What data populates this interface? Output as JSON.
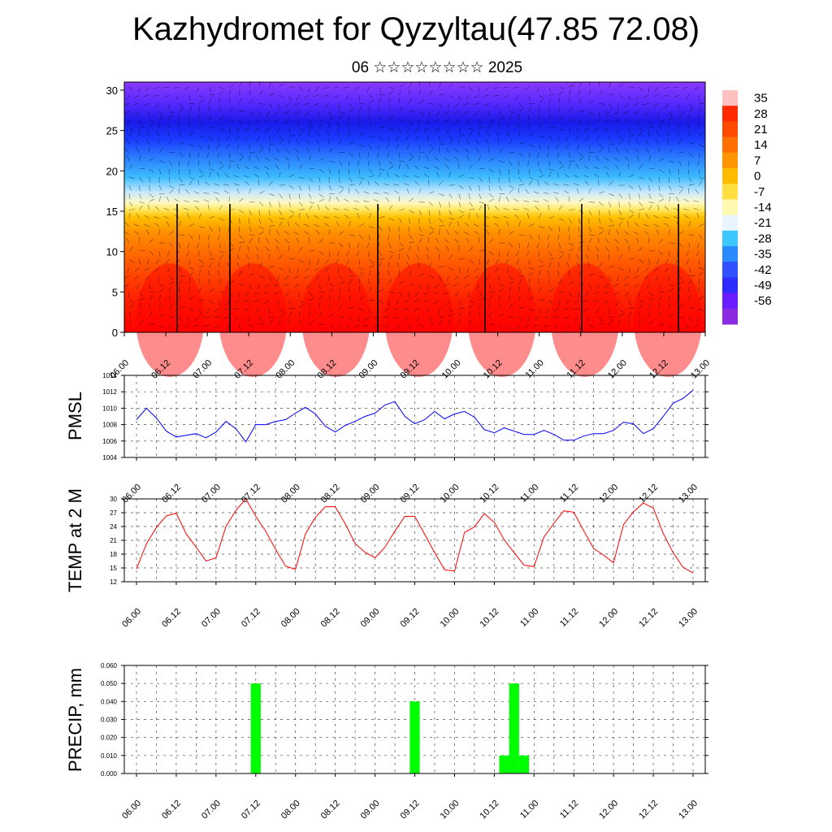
{
  "title": "Kazhydromet for Qyzyltau(47.85 72.08)",
  "subtitle": "06 ☆☆☆☆☆☆☆☆ 2025",
  "time_labels": [
    "06.00",
    "06.12",
    "07.00",
    "07.12",
    "08.00",
    "08.12",
    "09.00",
    "09.12",
    "10.00",
    "10.12",
    "11.00",
    "11.12",
    "12.00",
    "12.12",
    "13.00"
  ],
  "colors": {
    "pmsl_line": "#0000ff",
    "temp_line": "#ff0000",
    "precip_bar": "#00ff00"
  },
  "chart_data": [
    {
      "type": "heatmap",
      "name": "cross-section",
      "y_ticks": [
        "0",
        "5",
        "10",
        "15",
        "20",
        "25",
        "30"
      ],
      "ylim": [
        0,
        31
      ],
      "colorbar_labels": [
        "35",
        "28",
        "21",
        "14",
        "7",
        "0",
        "-7",
        "-14",
        "-21",
        "-28",
        "-35",
        "-42",
        "-49",
        "-56"
      ],
      "colorbar_colors": [
        "#ffc0c0",
        "#ff2a00",
        "#ff4a00",
        "#ff7000",
        "#ff9500",
        "#ffbb00",
        "#ffe040",
        "#fff8b0",
        "#e8f4ff",
        "#3cc8ff",
        "#2a8aff",
        "#3050ff",
        "#2f2cff",
        "#6a1eff",
        "#8a2be2"
      ]
    },
    {
      "type": "line",
      "name": "PMSL",
      "ylabel": "PMSL",
      "ylim": [
        1004,
        1014
      ],
      "y_ticks": [
        "1004",
        "1006",
        "1008",
        "1010",
        "1012",
        "1014"
      ],
      "values": [
        1008.6,
        1010.0,
        1008.8,
        1007.2,
        1006.5,
        1006.7,
        1006.9,
        1006.4,
        1007.1,
        1008.4,
        1007.5,
        1005.9,
        1008.0,
        1008.0,
        1008.4,
        1008.6,
        1009.4,
        1010.1,
        1009.3,
        1007.8,
        1007.1,
        1007.9,
        1008.4,
        1009.0,
        1009.4,
        1010.4,
        1010.8,
        1009.0,
        1008.1,
        1008.6,
        1009.6,
        1008.7,
        1009.3,
        1009.6,
        1008.9,
        1007.4,
        1007.0,
        1007.6,
        1007.2,
        1006.8,
        1006.8,
        1007.3,
        1006.8,
        1006.1,
        1006.1,
        1006.6,
        1006.9,
        1006.9,
        1007.3,
        1008.3,
        1008.1,
        1006.9,
        1007.5,
        1009.0,
        1010.6,
        1011.2,
        1012.2
      ]
    },
    {
      "type": "line",
      "name": "TEMP at 2 M",
      "ylabel": "TEMP at 2 M",
      "ylim": [
        12,
        30
      ],
      "y_ticks": [
        "12",
        "15",
        "18",
        "21",
        "24",
        "27",
        "30"
      ],
      "values": [
        14.8,
        20.2,
        23.8,
        26.3,
        26.9,
        22.4,
        19.5,
        16.5,
        17.2,
        24.0,
        27.5,
        30.0,
        26.2,
        23.0,
        19.0,
        15.4,
        14.7,
        22.4,
        26.0,
        28.3,
        28.3,
        24.6,
        20.3,
        18.4,
        17.2,
        19.5,
        23.0,
        26.2,
        26.2,
        22.3,
        18.3,
        14.6,
        14.3,
        22.7,
        23.9,
        26.8,
        24.9,
        21.1,
        18.3,
        15.6,
        15.3,
        21.7,
        24.7,
        27.4,
        27.1,
        23.1,
        19.2,
        17.8,
        16.1,
        24.4,
        27.2,
        29.1,
        28.0,
        22.5,
        18.3,
        15.1,
        13.9
      ]
    },
    {
      "type": "bar",
      "name": "PRECIP",
      "ylabel": "PRECIP, mm",
      "ylim": [
        0,
        0.06
      ],
      "y_ticks": [
        "0.000",
        "0.010",
        "0.020",
        "0.030",
        "0.040",
        "0.050",
        "0.060"
      ],
      "values": [
        0,
        0,
        0,
        0,
        0,
        0,
        0,
        0,
        0,
        0,
        0,
        0,
        0.05,
        0,
        0,
        0,
        0,
        0,
        0,
        0,
        0,
        0,
        0,
        0,
        0,
        0,
        0,
        0,
        0.04,
        0,
        0,
        0,
        0,
        0,
        0,
        0,
        0,
        0.01,
        0.05,
        0.01,
        0,
        0,
        0,
        0,
        0,
        0,
        0,
        0,
        0,
        0,
        0,
        0,
        0,
        0,
        0,
        0,
        0
      ]
    }
  ]
}
